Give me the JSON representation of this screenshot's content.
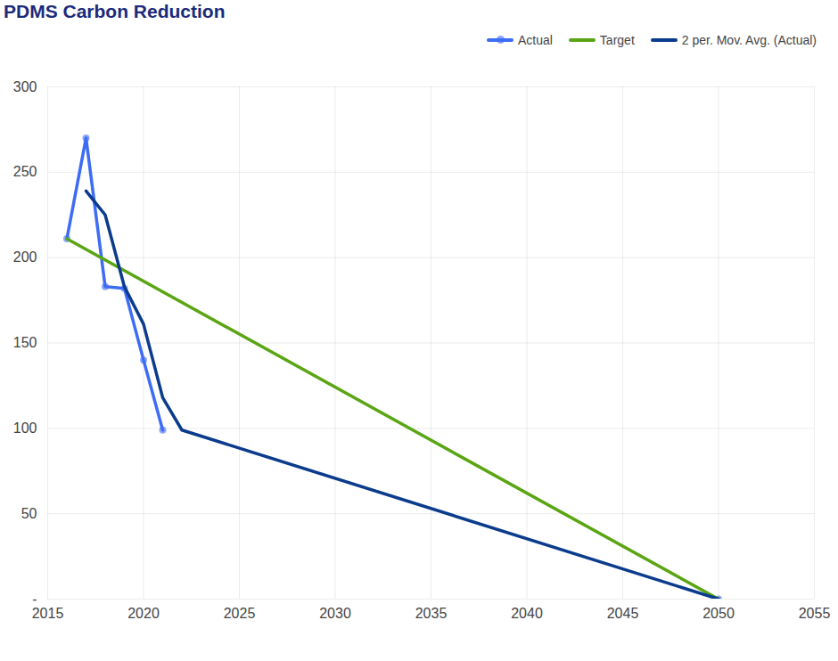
{
  "chart_data": {
    "type": "line",
    "title": "PDMS Carbon Reduction",
    "series": [
      {
        "name": "Actual",
        "color": "#3d6cf5",
        "marker": "circle",
        "x": [
          2016,
          2017,
          2018,
          2019,
          2020,
          2021,
          2022,
          2050
        ],
        "values": [
          211,
          270,
          183,
          182,
          140,
          99,
          null,
          0
        ]
      },
      {
        "name": "Target",
        "color": "#5aa514",
        "x": [
          2016,
          2050
        ],
        "values": [
          211,
          0
        ]
      },
      {
        "name": "2 per. Mov. Avg. (Actual)",
        "color": "#0b3b8c",
        "x": [
          2017,
          2018,
          2019,
          2020,
          2021,
          2022,
          2050
        ],
        "values": [
          239,
          225,
          183,
          161,
          118,
          99,
          0
        ]
      }
    ],
    "xlim": [
      2015,
      2055
    ],
    "xticks": [
      2015,
      2020,
      2025,
      2030,
      2035,
      2040,
      2045,
      2050,
      2055
    ],
    "ylim": [
      0,
      300
    ],
    "yticks": [
      {
        "value": 0,
        "label": "-"
      },
      50,
      100,
      150,
      200,
      250,
      300
    ],
    "grid": true,
    "legend": "top-right"
  }
}
